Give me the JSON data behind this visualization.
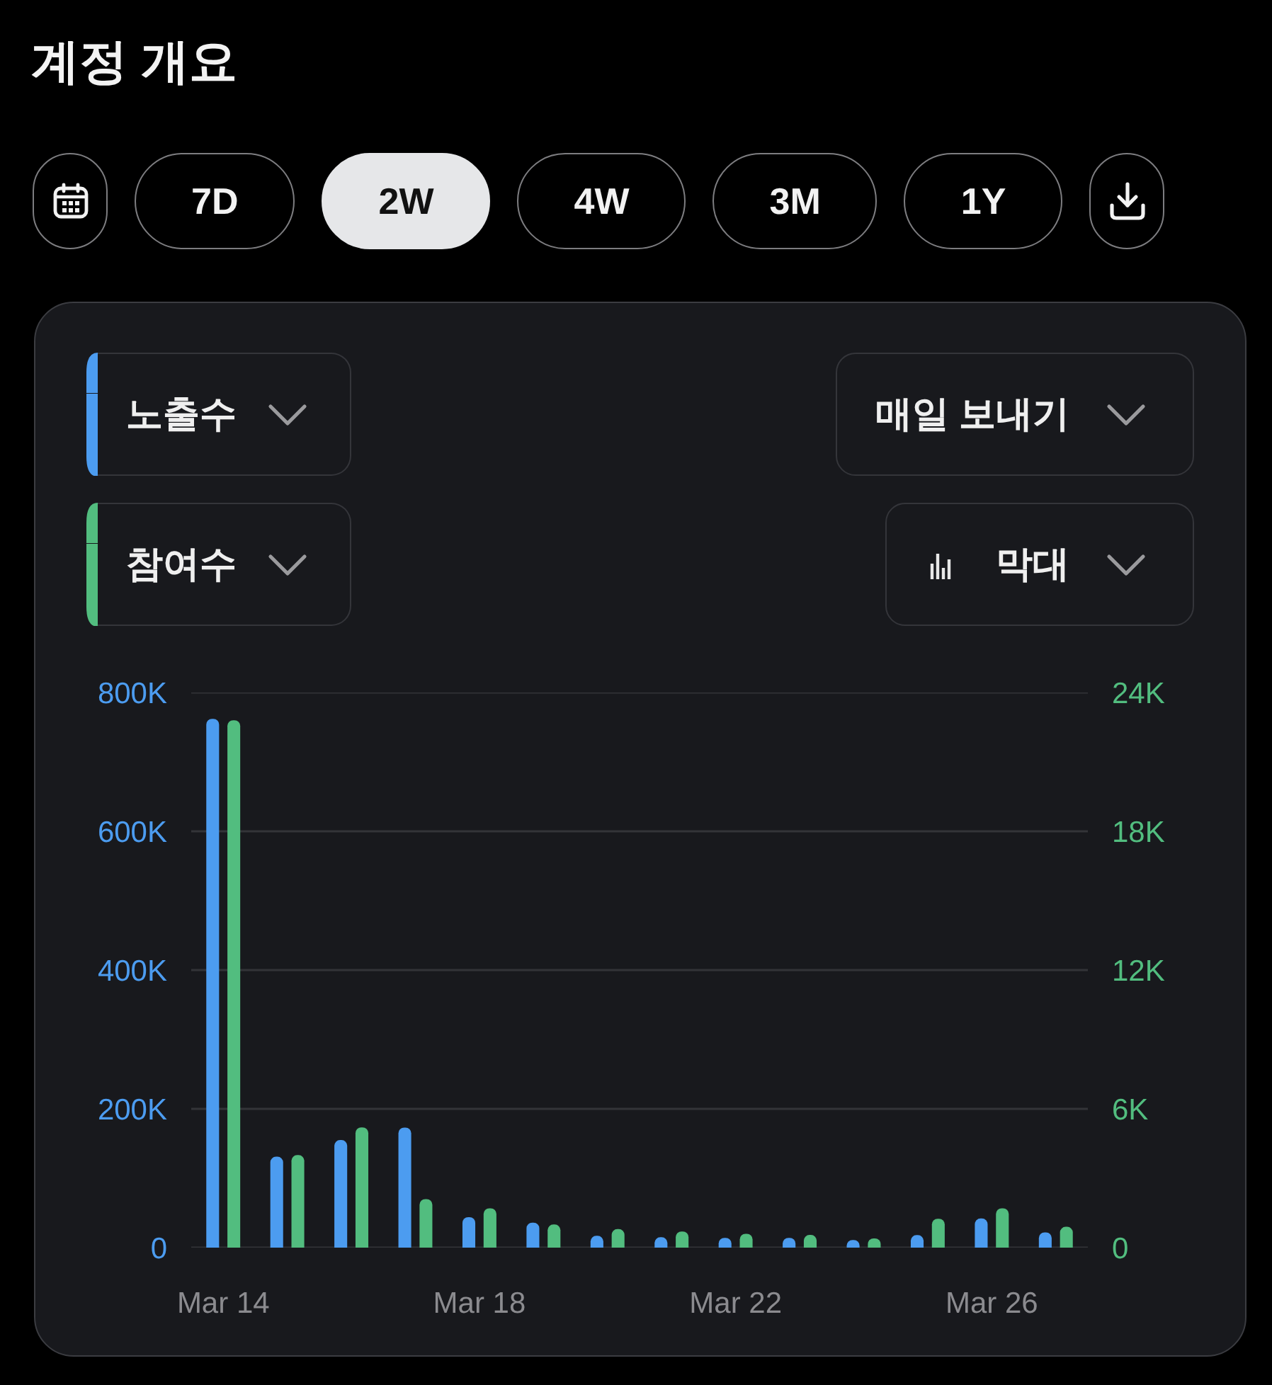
{
  "chart_data": {
    "type": "bar",
    "title": "계정 개요",
    "categories": [
      "Mar 14",
      null,
      null,
      null,
      "Mar 18",
      null,
      null,
      null,
      "Mar 22",
      null,
      null,
      null,
      "Mar 26",
      null
    ],
    "series": [
      {
        "name": "노출수",
        "color": "#4c9cf0",
        "values": [
          762000,
          131000,
          155000,
          173000,
          44000,
          36000,
          17000,
          15000,
          14000,
          14000,
          11000,
          18000,
          42000,
          22000
        ]
      },
      {
        "name": "참여수",
        "color": "#52bd7f",
        "axis": "y2",
        "values": [
          22800,
          4000,
          5200,
          2100,
          1700,
          1000,
          800,
          700,
          600,
          550,
          400,
          1250,
          1700,
          900
        ]
      }
    ],
    "ylim": [
      0,
      800000
    ],
    "yticks": [
      {
        "value": 0,
        "label": "0"
      },
      {
        "value": 200000,
        "label": "200K"
      },
      {
        "value": 400000,
        "label": "400K"
      },
      {
        "value": 600000,
        "label": "600K"
      },
      {
        "value": 800000,
        "label": "800K"
      }
    ],
    "y2lim": [
      0,
      24000
    ],
    "y2ticks": [
      {
        "value": 0,
        "label": "0"
      },
      {
        "value": 6000,
        "label": "6K"
      },
      {
        "value": 12000,
        "label": "12K"
      },
      {
        "value": 18000,
        "label": "18K"
      },
      {
        "value": 24000,
        "label": "24K"
      }
    ],
    "grid": "y",
    "legend": "top left",
    "annotations": [
      "7D",
      "2W",
      "4W",
      "3M",
      "1Y",
      "매일 보내기",
      "막대"
    ]
  }
}
